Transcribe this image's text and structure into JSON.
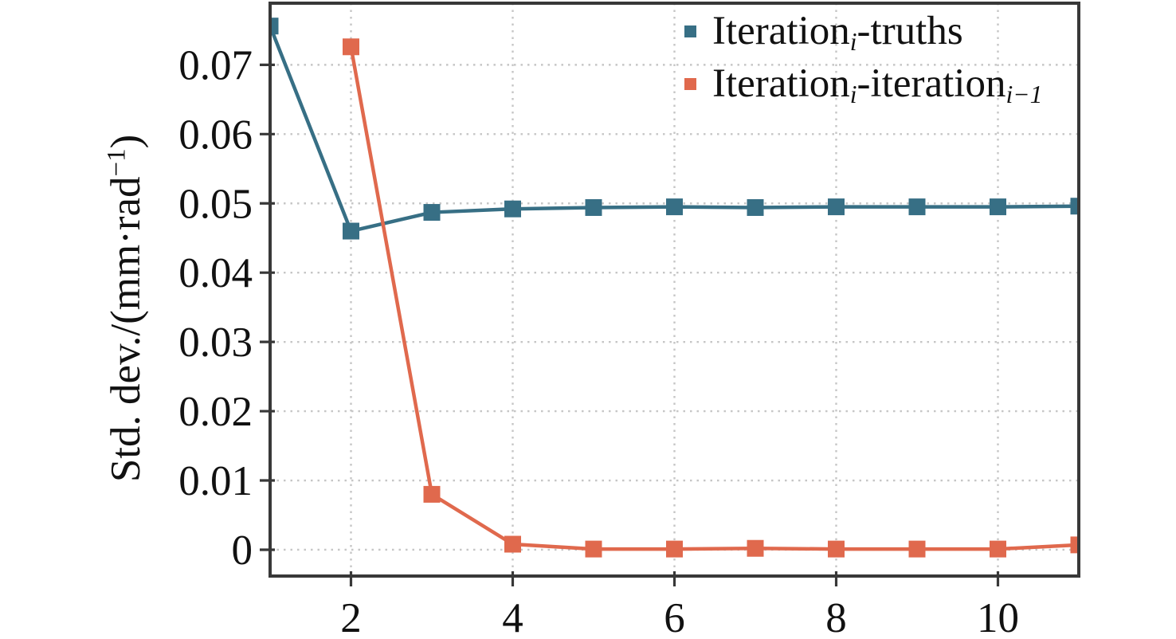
{
  "chart_data": {
    "type": "line",
    "title": "",
    "xlabel": "",
    "ylabel": "Std. dev./(mm·rad⁻¹)",
    "ylabel_parts": [
      {
        "t": "Std. dev./(mm·rad"
      },
      {
        "sup": "−1"
      },
      {
        "t": ")"
      }
    ],
    "xlim": [
      1,
      11
    ],
    "ylim": [
      -0.0038,
      0.0789
    ],
    "x_ticks": [
      2,
      4,
      6,
      8,
      10
    ],
    "x_tick_labels": [
      "2",
      "4",
      "6",
      "8",
      "10"
    ],
    "y_ticks": [
      0,
      0.01,
      0.02,
      0.03,
      0.04,
      0.05,
      0.06,
      0.07
    ],
    "y_tick_labels": [
      "0",
      "0.01",
      "0.02",
      "0.03",
      "0.04",
      "0.05",
      "0.06",
      "0.07"
    ],
    "grid": "dotted",
    "legend_position": "upper right",
    "legend_frame": false,
    "series": [
      {
        "name": "Iteration_i-truths",
        "label_parts": [
          {
            "t": "Iteration"
          },
          {
            "sub": "i"
          },
          {
            "t": "-truths"
          }
        ],
        "color": "#376f85",
        "marker": "square",
        "x": [
          1,
          2,
          3,
          4,
          5,
          6,
          7,
          8,
          9,
          10,
          11
        ],
        "y": [
          0.0756,
          0.046,
          0.0487,
          0.0492,
          0.0494,
          0.0495,
          0.0494,
          0.0495,
          0.0495,
          0.0495,
          0.0496
        ]
      },
      {
        "name": "Iteration_i-iteration_(i-1)",
        "label_parts": [
          {
            "t": "Iteration"
          },
          {
            "sub": "i"
          },
          {
            "t": "-iteration"
          },
          {
            "sub": "i−1"
          }
        ],
        "color": "#e0694d",
        "marker": "square",
        "x": [
          2,
          3,
          4,
          5,
          6,
          7,
          8,
          9,
          10,
          11
        ],
        "y": [
          0.0726,
          0.008,
          0.0008,
          0.0001,
          0.0001,
          0.0002,
          0.0001,
          0.0001,
          0.0001,
          0.0007
        ]
      }
    ],
    "colors": {
      "axis": "#383838",
      "grid": "#c6c6c6",
      "text": "#111111",
      "background": "#ffffff"
    }
  }
}
